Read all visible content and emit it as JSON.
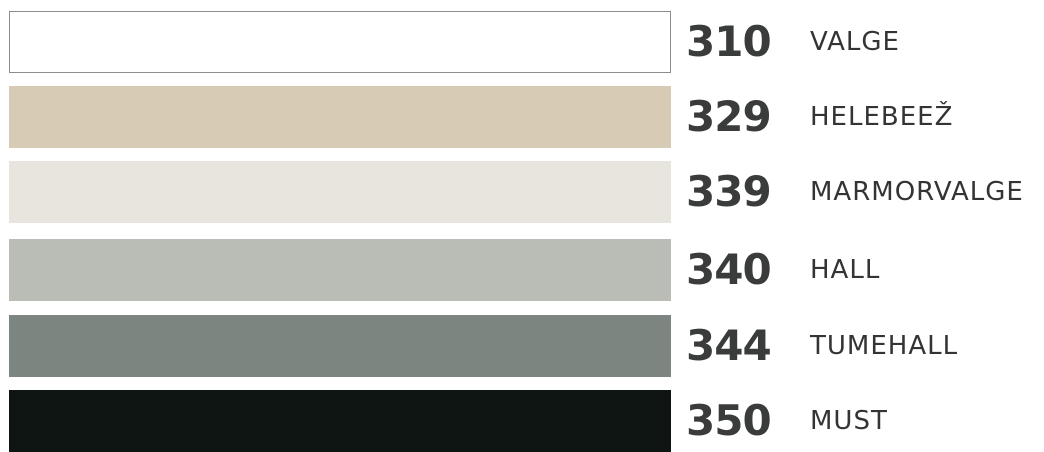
{
  "colors": [
    {
      "code": "310",
      "name": "VALGE",
      "hex": "#ffffff",
      "outlined": true
    },
    {
      "code": "329",
      "name": "HELEBEEŽ",
      "hex": "#d8cbb5",
      "outlined": false
    },
    {
      "code": "339",
      "name": "MARMORVALGE",
      "hex": "#e8e5df",
      "outlined": false
    },
    {
      "code": "340",
      "name": "HALL",
      "hex": "#babdb6",
      "outlined": false
    },
    {
      "code": "344",
      "name": "TUMEHALL",
      "hex": "#7d8581",
      "outlined": false
    },
    {
      "code": "350",
      "name": "MUST",
      "hex": "#0e1513",
      "outlined": false
    }
  ]
}
